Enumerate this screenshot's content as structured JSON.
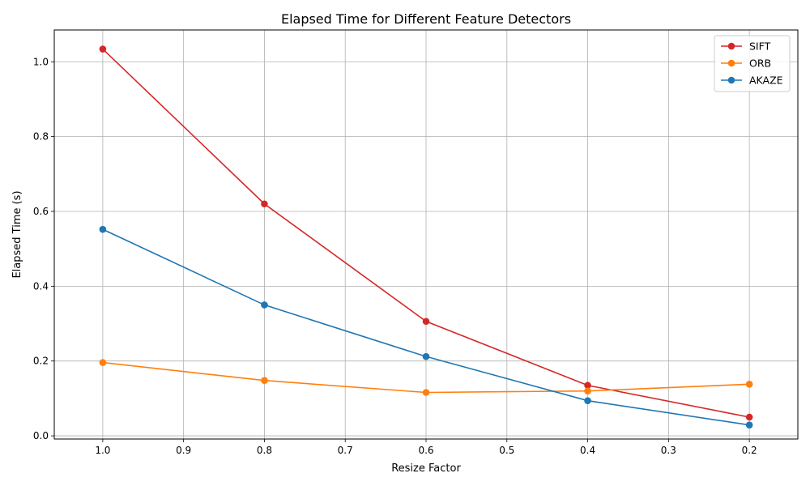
{
  "chart_data": {
    "type": "line",
    "title": "Elapsed Time for Different Feature Detectors",
    "xlabel": "Resize Factor",
    "ylabel": "Elapsed Time (s)",
    "x": [
      1.0,
      0.8,
      0.6,
      0.4,
      0.2
    ],
    "x_reversed": true,
    "xlim": [
      1.06,
      0.14
    ],
    "ylim": [
      -0.0085,
      1.085
    ],
    "xticks": [
      1.0,
      0.9,
      0.8,
      0.7,
      0.6,
      0.5,
      0.4,
      0.3,
      0.2
    ],
    "xtick_labels": [
      "1.0",
      "0.9",
      "0.8",
      "0.7",
      "0.6",
      "0.5",
      "0.4",
      "0.3",
      "0.2"
    ],
    "yticks": [
      0.0,
      0.2,
      0.4,
      0.6,
      0.8,
      1.0
    ],
    "ytick_labels": [
      "0.0",
      "0.2",
      "0.4",
      "0.6",
      "0.8",
      "1.0"
    ],
    "grid": true,
    "legend_position": "top-right",
    "markers": "circle",
    "series": [
      {
        "name": "SIFT",
        "color": "#d62728",
        "values": [
          1.034,
          0.62,
          0.306,
          0.135,
          0.05
        ]
      },
      {
        "name": "ORB",
        "color": "#ff7f0e",
        "values": [
          0.196,
          0.148,
          0.116,
          0.12,
          0.138
        ]
      },
      {
        "name": "AKAZE",
        "color": "#1f77b4",
        "values": [
          0.552,
          0.35,
          0.212,
          0.094,
          0.029
        ]
      }
    ]
  }
}
